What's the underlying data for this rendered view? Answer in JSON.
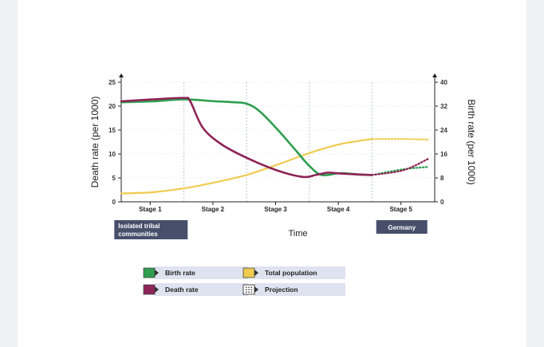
{
  "chart_data": {
    "type": "line",
    "title": "",
    "xlabel": "Time",
    "ylabel_left": "Death rate (per 1000)",
    "ylabel_right": "Birth rate (per 1000)",
    "y_left_ticks": [
      "0",
      "5",
      "10",
      "15",
      "20",
      "25"
    ],
    "y_right_ticks": [
      "0",
      "8",
      "16",
      "24",
      "32",
      "40"
    ],
    "ylim_left": [
      0,
      25
    ],
    "ylim_right": [
      0,
      40
    ],
    "stages": [
      "Stage 1",
      "Stage 2",
      "Stage 3",
      "Stage 4",
      "Stage 5"
    ],
    "annotations": [
      {
        "stage": 1,
        "lines": [
          "Isolated tribal",
          "communities"
        ]
      },
      {
        "stage": 5,
        "lines": [
          "Germany"
        ]
      }
    ],
    "x_range": [
      0,
      5
    ],
    "series": [
      {
        "name": "Birth rate",
        "key": "birth",
        "axis": "left",
        "color": "#2e9e4f",
        "points": [
          [
            0,
            20.8
          ],
          [
            0.5,
            21.0
          ],
          [
            1.0,
            21.4
          ],
          [
            1.5,
            21.0
          ],
          [
            1.8,
            20.8
          ],
          [
            2.0,
            20.5
          ],
          [
            2.2,
            19.0
          ],
          [
            2.5,
            15.0
          ],
          [
            2.8,
            10.5
          ],
          [
            3.0,
            7.5
          ],
          [
            3.2,
            5.6
          ],
          [
            3.5,
            6.0
          ],
          [
            3.8,
            5.7
          ],
          [
            4.0,
            5.6
          ]
        ],
        "projection": [
          [
            4.0,
            5.6
          ],
          [
            4.5,
            6.8
          ],
          [
            4.9,
            7.3
          ]
        ]
      },
      {
        "name": "Death rate",
        "key": "death",
        "axis": "left",
        "color": "#8e2457",
        "points": [
          [
            0,
            21.0
          ],
          [
            0.5,
            21.4
          ],
          [
            1.0,
            21.7
          ],
          [
            1.1,
            21.0
          ],
          [
            1.3,
            15.5
          ],
          [
            1.6,
            12.0
          ],
          [
            2.0,
            9.2
          ],
          [
            2.5,
            6.5
          ],
          [
            2.9,
            5.2
          ],
          [
            3.1,
            5.6
          ],
          [
            3.3,
            6.1
          ],
          [
            3.5,
            5.9
          ],
          [
            3.8,
            5.7
          ],
          [
            4.0,
            5.6
          ]
        ],
        "projection": [
          [
            4.0,
            5.6
          ],
          [
            4.5,
            6.6
          ],
          [
            4.9,
            9.0
          ]
        ]
      },
      {
        "name": "Total population",
        "key": "population",
        "axis": "right",
        "color": "#efcb4f",
        "points": [
          [
            0,
            2.8
          ],
          [
            0.5,
            3.2
          ],
          [
            1.0,
            4.5
          ],
          [
            1.5,
            6.5
          ],
          [
            2.0,
            9.0
          ],
          [
            2.5,
            12.5
          ],
          [
            3.0,
            16.3
          ],
          [
            3.5,
            19.3
          ],
          [
            4.0,
            21.0
          ]
        ],
        "projection": [
          [
            4.0,
            21.0
          ],
          [
            4.5,
            21.0
          ],
          [
            4.9,
            20.8
          ]
        ]
      }
    ],
    "legend": [
      {
        "label": "Birth rate",
        "color": "#2e9e4f",
        "style": "solid"
      },
      {
        "label": "Death rate",
        "color": "#8e2457",
        "style": "solid"
      },
      {
        "label": "Total population",
        "color": "#efcb4f",
        "style": "solid"
      },
      {
        "label": "Projection",
        "color": "#ffffff",
        "style": "dotted"
      }
    ],
    "grid": false,
    "legend_position": "bottom-left"
  }
}
